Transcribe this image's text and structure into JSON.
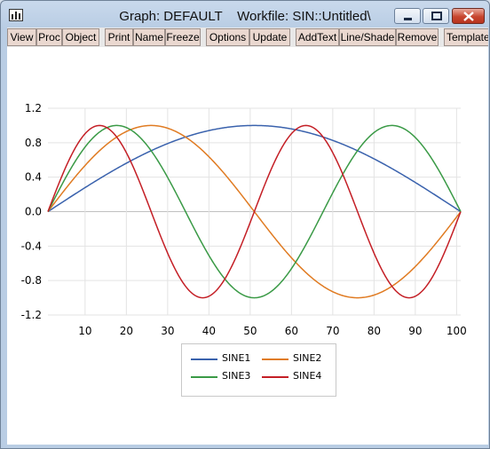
{
  "window": {
    "title_graph": "Graph: DEFAULT",
    "title_workfile": "Workfile: SIN::Untitled\\"
  },
  "toolbar": {
    "buttons": [
      "View",
      "Proc",
      "Object",
      "Print",
      "Name",
      "Freeze",
      "Options",
      "Update",
      "AddText",
      "Line/Shade",
      "Remove",
      "Template"
    ]
  },
  "colors": {
    "SINE1": "#3a62ad",
    "SINE2": "#e07b22",
    "SINE3": "#3a9a46",
    "SINE4": "#c41f26"
  },
  "icons": {
    "app": "bar-chart-icon",
    "minimize": "minimize-icon",
    "maximize": "maximize-icon",
    "close": "close-icon"
  },
  "chart_data": {
    "type": "line",
    "x_start": 1,
    "x_end": 101,
    "xticks": [
      "10",
      "20",
      "30",
      "40",
      "50",
      "60",
      "70",
      "80",
      "90",
      "100"
    ],
    "yticks": [
      "-1.2",
      "-0.8",
      "-0.4",
      "0.0",
      "0.4",
      "0.8",
      "1.2"
    ],
    "ylim": [
      -1.2,
      1.2
    ],
    "grid": true,
    "legend_position": "bottom-center",
    "series": [
      {
        "name": "SINE1",
        "half_cycles": 1
      },
      {
        "name": "SINE2",
        "half_cycles": 2
      },
      {
        "name": "SINE3",
        "half_cycles": 3
      },
      {
        "name": "SINE4",
        "half_cycles": 4
      }
    ]
  }
}
